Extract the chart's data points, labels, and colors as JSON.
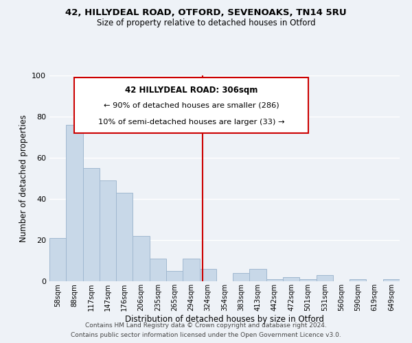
{
  "title1": "42, HILLYDEAL ROAD, OTFORD, SEVENOAKS, TN14 5RU",
  "title2": "Size of property relative to detached houses in Otford",
  "xlabel": "Distribution of detached houses by size in Otford",
  "ylabel": "Number of detached properties",
  "bar_labels": [
    "58sqm",
    "88sqm",
    "117sqm",
    "147sqm",
    "176sqm",
    "206sqm",
    "235sqm",
    "265sqm",
    "294sqm",
    "324sqm",
    "354sqm",
    "383sqm",
    "413sqm",
    "442sqm",
    "472sqm",
    "501sqm",
    "531sqm",
    "560sqm",
    "590sqm",
    "619sqm",
    "649sqm"
  ],
  "bar_values": [
    21,
    76,
    55,
    49,
    43,
    22,
    11,
    5,
    11,
    6,
    0,
    4,
    6,
    1,
    2,
    1,
    3,
    0,
    1,
    0,
    1
  ],
  "bar_color": "#c8d8e8",
  "bar_edge_color": "#a0b8d0",
  "vline_x": 8.67,
  "vline_color": "#cc0000",
  "annotation_title": "42 HILLYDEAL ROAD: 306sqm",
  "annotation_line1": "← 90% of detached houses are smaller (286)",
  "annotation_line2": "10% of semi-detached houses are larger (33) →",
  "box_facecolor": "#ffffff",
  "box_edgecolor": "#cc0000",
  "ylim": [
    0,
    100
  ],
  "footer1": "Contains HM Land Registry data © Crown copyright and database right 2024.",
  "footer2": "Contains public sector information licensed under the Open Government Licence v3.0.",
  "bg_color": "#eef2f7",
  "grid_color": "#ffffff"
}
